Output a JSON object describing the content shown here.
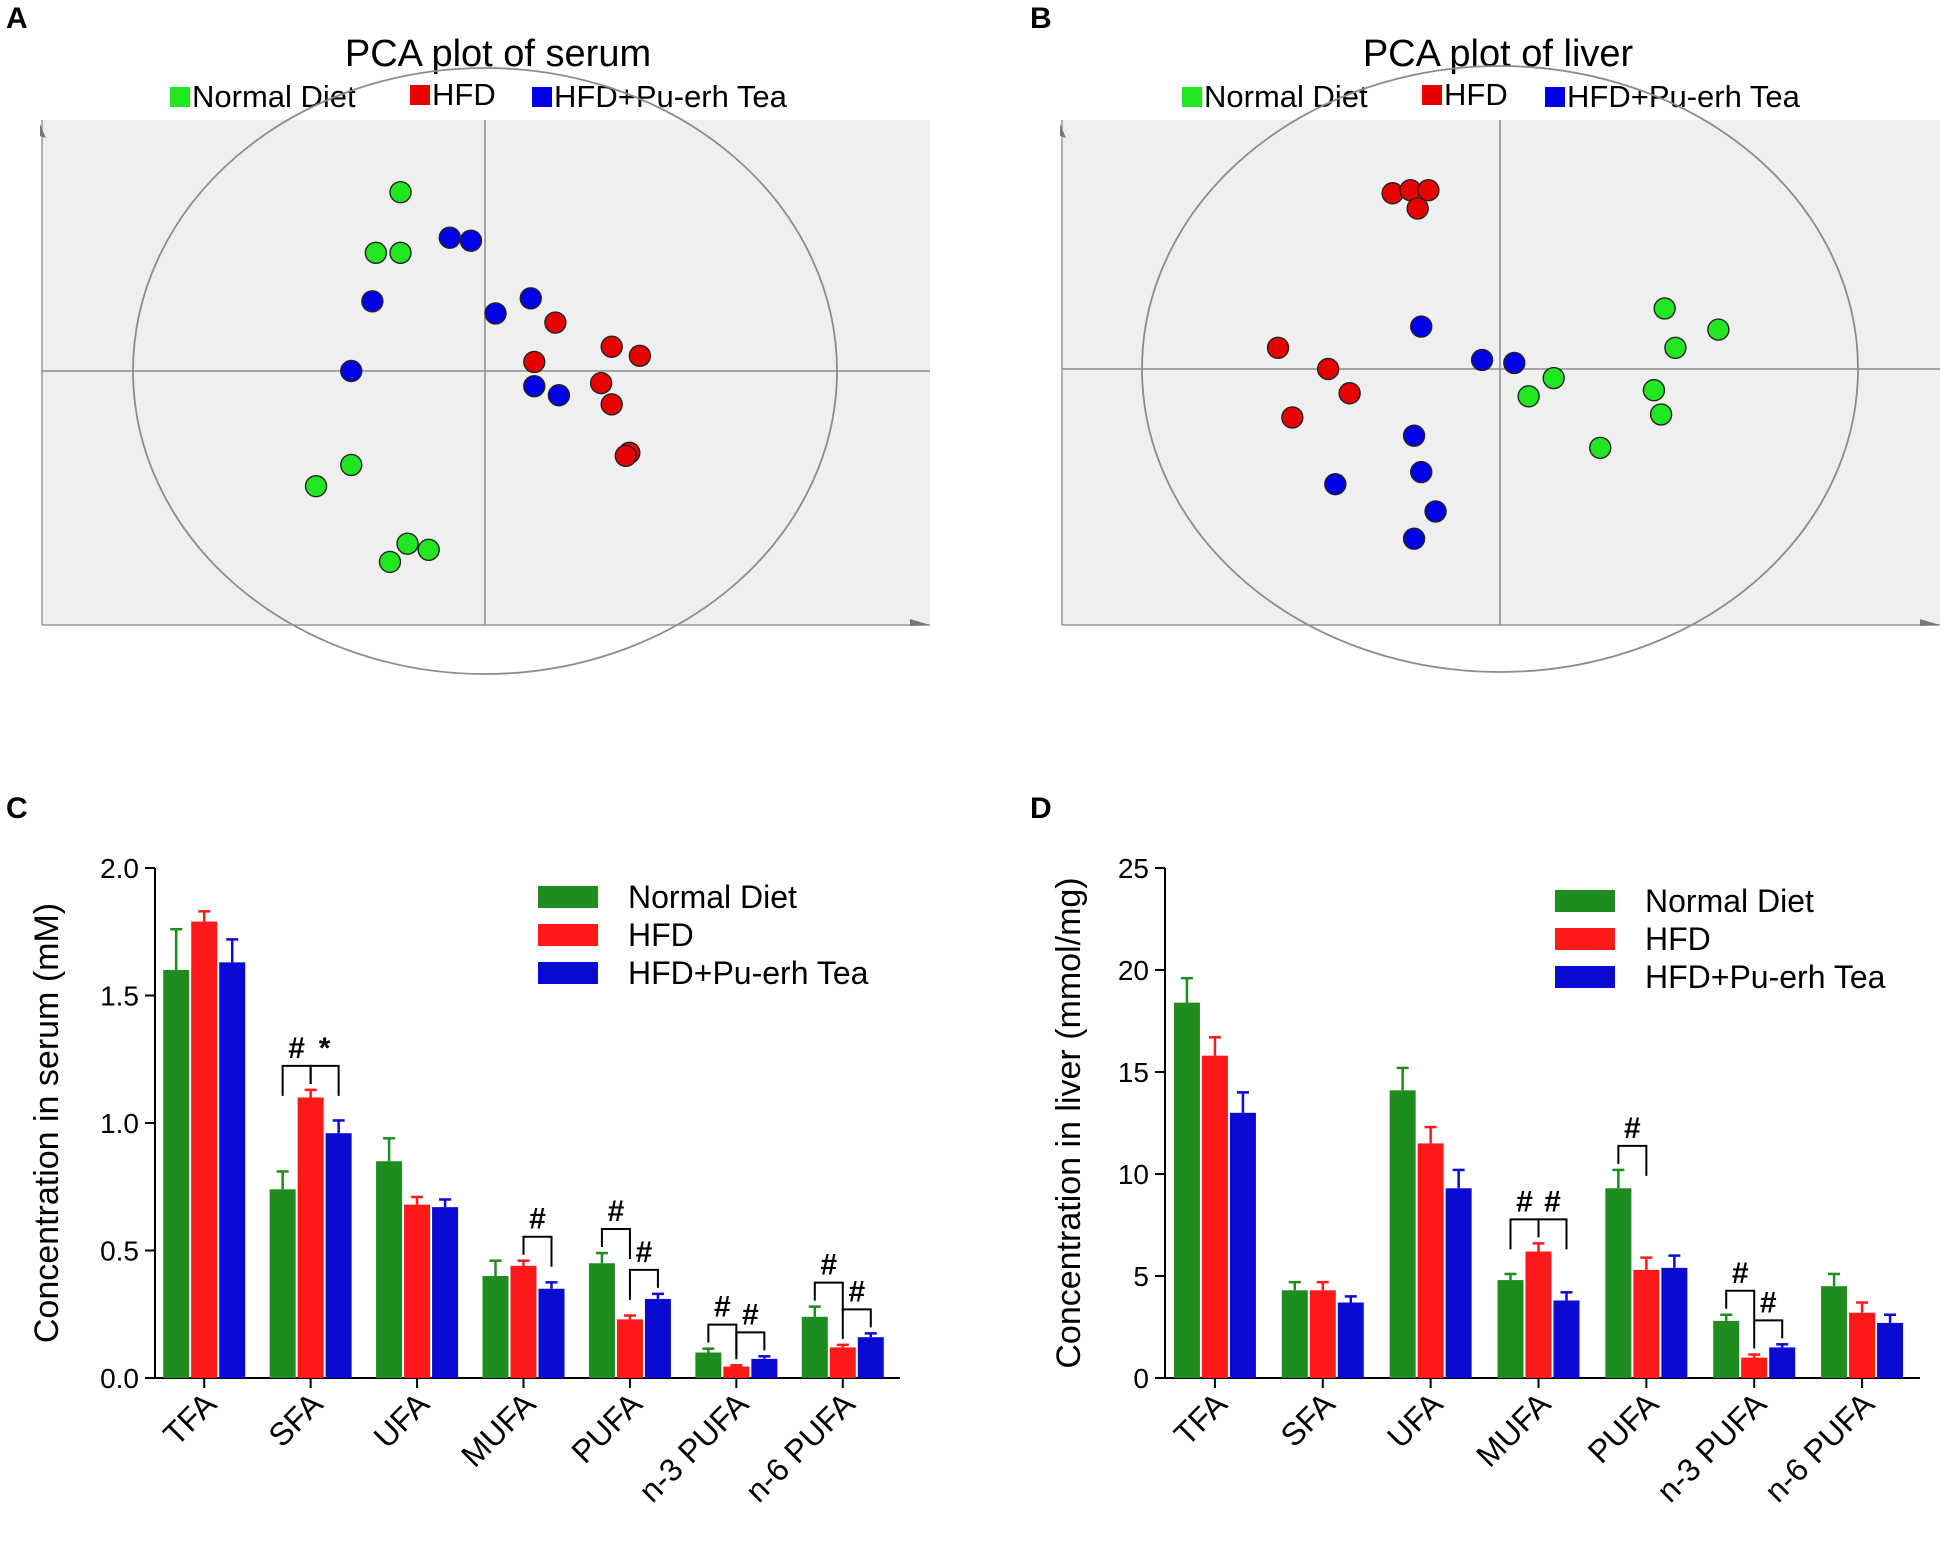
{
  "colors": {
    "pca_normal": "#22e622",
    "pca_hfd": "#e60000",
    "pca_tea": "#0000e6",
    "bar_normal": "#1e8c1e",
    "bar_hfd": "#ff1a1a",
    "bar_tea": "#0a0ad2",
    "plot_bg": "#efefef"
  },
  "chart_data": [
    {
      "panel": "A",
      "type": "scatter",
      "title": "PCA plot of serum",
      "legend": [
        "Normal Diet",
        "HFD",
        "HFD+Pu-erh Tea"
      ],
      "xlim": [
        -1.0,
        1.0
      ],
      "ylim": [
        -1.0,
        1.0
      ],
      "series": [
        {
          "name": "Normal Diet",
          "points": [
            [
              -0.24,
              0.59
            ],
            [
              -0.31,
              0.39
            ],
            [
              -0.24,
              0.39
            ],
            [
              -0.38,
              -0.31
            ],
            [
              -0.48,
              -0.38
            ],
            [
              -0.22,
              -0.57
            ],
            [
              -0.16,
              -0.59
            ],
            [
              -0.27,
              -0.63
            ]
          ]
        },
        {
          "name": "HFD",
          "points": [
            [
              0.2,
              0.16
            ],
            [
              0.36,
              0.08
            ],
            [
              0.44,
              0.05
            ],
            [
              0.14,
              0.03
            ],
            [
              0.33,
              -0.04
            ],
            [
              0.36,
              -0.11
            ],
            [
              0.41,
              -0.27
            ],
            [
              0.4,
              -0.28
            ]
          ]
        },
        {
          "name": "HFD+Pu-erh Tea",
          "points": [
            [
              -0.1,
              0.44
            ],
            [
              -0.04,
              0.43
            ],
            [
              -0.32,
              0.23
            ],
            [
              0.03,
              0.19
            ],
            [
              0.13,
              0.24
            ],
            [
              -0.38,
              0.0
            ],
            [
              0.14,
              -0.05
            ],
            [
              0.21,
              -0.08
            ]
          ]
        }
      ]
    },
    {
      "panel": "B",
      "type": "scatter",
      "title": "PCA plot of liver",
      "legend": [
        "Normal Diet",
        "HFD",
        "HFD+Pu-erh Tea"
      ],
      "xlim": [
        -1.0,
        1.0
      ],
      "ylim": [
        -1.0,
        1.0
      ],
      "series": [
        {
          "name": "Normal Diet",
          "points": [
            [
              0.46,
              0.2
            ],
            [
              0.61,
              0.13
            ],
            [
              0.49,
              0.07
            ],
            [
              0.15,
              -0.03
            ],
            [
              0.08,
              -0.09
            ],
            [
              0.43,
              -0.07
            ],
            [
              0.45,
              -0.15
            ],
            [
              0.28,
              -0.26
            ]
          ]
        },
        {
          "name": "HFD",
          "points": [
            [
              -0.3,
              0.58
            ],
            [
              -0.25,
              0.59
            ],
            [
              -0.2,
              0.59
            ],
            [
              -0.23,
              0.53
            ],
            [
              -0.62,
              0.07
            ],
            [
              -0.48,
              0.0
            ],
            [
              -0.58,
              -0.16
            ],
            [
              -0.42,
              -0.08
            ]
          ]
        },
        {
          "name": "HFD+Pu-erh Tea",
          "points": [
            [
              -0.22,
              0.14
            ],
            [
              -0.05,
              0.03
            ],
            [
              0.04,
              0.02
            ],
            [
              -0.24,
              -0.22
            ],
            [
              -0.22,
              -0.34
            ],
            [
              -0.18,
              -0.47
            ],
            [
              -0.46,
              -0.38
            ],
            [
              -0.24,
              -0.56
            ]
          ]
        }
      ]
    },
    {
      "panel": "C",
      "type": "bar",
      "ylabel": "Concentration in serum (mM)",
      "ylim": [
        0.0,
        2.0
      ],
      "yticks": [
        "0.0",
        "0.5",
        "1.0",
        "1.5",
        "2.0"
      ],
      "categories": [
        "TFA",
        "SFA",
        "UFA",
        "MUFA",
        "PUFA",
        "n-3 PUFA",
        "n-6 PUFA"
      ],
      "series": [
        {
          "name": "Normal Diet",
          "values": [
            1.6,
            0.74,
            0.85,
            0.4,
            0.45,
            0.1,
            0.24
          ],
          "errors": [
            0.16,
            0.07,
            0.09,
            0.06,
            0.04,
            0.015,
            0.04
          ]
        },
        {
          "name": "HFD",
          "values": [
            1.79,
            1.1,
            0.68,
            0.44,
            0.23,
            0.045,
            0.12
          ],
          "errors": [
            0.04,
            0.03,
            0.03,
            0.02,
            0.015,
            0.005,
            0.01
          ]
        },
        {
          "name": "HFD+Pu-erh Tea",
          "values": [
            1.63,
            0.96,
            0.67,
            0.35,
            0.31,
            0.075,
            0.16
          ],
          "errors": [
            0.09,
            0.05,
            0.03,
            0.025,
            0.02,
            0.01,
            0.015
          ]
        }
      ],
      "legend": [
        "Normal Diet",
        "HFD",
        "HFD+Pu-erh Tea"
      ],
      "annotations": [
        {
          "category": 1,
          "from": 0,
          "to": 1,
          "label": "#"
        },
        {
          "category": 1,
          "from": 1,
          "to": 2,
          "label": "*"
        },
        {
          "category": 3,
          "from": 1,
          "to": 2,
          "label": "#"
        },
        {
          "category": 4,
          "from": 0,
          "to": 1,
          "label": "#"
        },
        {
          "category": 4,
          "from": 1,
          "to": 2,
          "label": "#"
        },
        {
          "category": 5,
          "from": 0,
          "to": 1,
          "label": "#"
        },
        {
          "category": 5,
          "from": 1,
          "to": 2,
          "label": "#"
        },
        {
          "category": 6,
          "from": 0,
          "to": 1,
          "label": "#"
        },
        {
          "category": 6,
          "from": 1,
          "to": 2,
          "label": "#"
        }
      ]
    },
    {
      "panel": "D",
      "type": "bar",
      "ylabel": "Concentration in liver (mmol/mg)",
      "ylim": [
        0,
        25
      ],
      "yticks": [
        "0",
        "5",
        "10",
        "15",
        "20",
        "25"
      ],
      "categories": [
        "TFA",
        "SFA",
        "UFA",
        "MUFA",
        "PUFA",
        "n-3 PUFA",
        "n-6 PUFA"
      ],
      "series": [
        {
          "name": "Normal Diet",
          "values": [
            18.4,
            4.3,
            14.1,
            4.8,
            9.3,
            2.8,
            4.5
          ],
          "errors": [
            1.2,
            0.4,
            1.1,
            0.3,
            0.9,
            0.3,
            0.6
          ]
        },
        {
          "name": "HFD",
          "values": [
            15.8,
            4.3,
            11.5,
            6.2,
            5.3,
            1.0,
            3.2
          ],
          "errors": [
            0.9,
            0.4,
            0.8,
            0.4,
            0.6,
            0.15,
            0.5
          ]
        },
        {
          "name": "HFD+Pu-erh Tea",
          "values": [
            13.0,
            3.7,
            9.3,
            3.8,
            5.4,
            1.5,
            2.7
          ],
          "errors": [
            1.0,
            0.3,
            0.9,
            0.4,
            0.6,
            0.15,
            0.4
          ]
        }
      ],
      "legend": [
        "Normal Diet",
        "HFD",
        "HFD+Pu-erh Tea"
      ],
      "annotations": [
        {
          "category": 3,
          "from": 0,
          "to": 1,
          "label": "#"
        },
        {
          "category": 3,
          "from": 1,
          "to": 2,
          "label": "#"
        },
        {
          "category": 4,
          "from": 0,
          "to": 1,
          "label": "#"
        },
        {
          "category": 5,
          "from": 0,
          "to": 1,
          "label": "#"
        },
        {
          "category": 5,
          "from": 1,
          "to": 2,
          "label": "#"
        }
      ]
    }
  ]
}
